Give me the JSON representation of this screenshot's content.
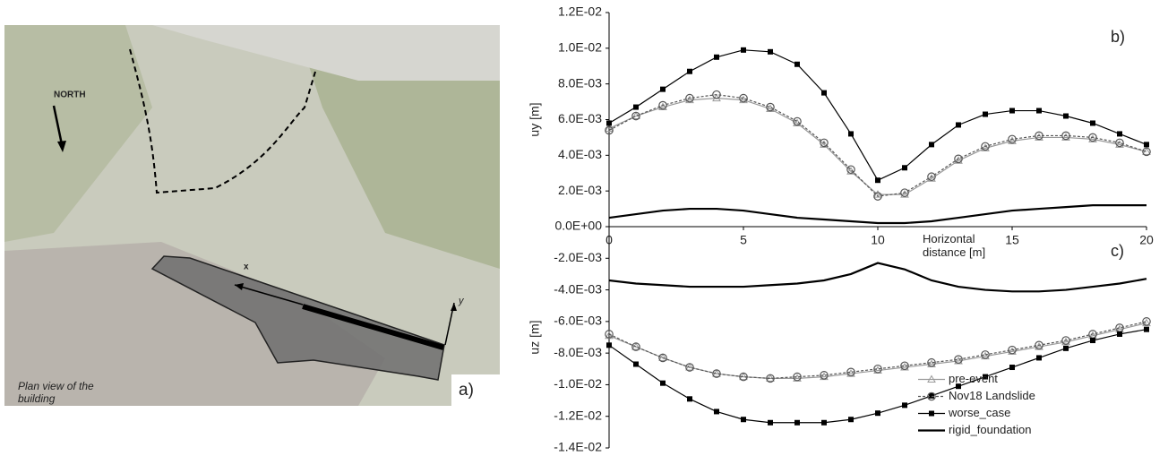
{
  "photo": {
    "north": "NORTH",
    "x_axis": "x",
    "y_axis": "y",
    "caption": "Plan view of the building",
    "panel": "a)"
  },
  "chart_data": [
    {
      "type": "line",
      "panel": "b)",
      "ylabel": "uy [m]",
      "xlabel": "Horizontal distance [m]",
      "x": [
        0,
        1,
        2,
        3,
        4,
        5,
        6,
        7,
        8,
        9,
        10,
        11,
        12,
        13,
        14,
        15,
        16,
        17,
        18,
        19,
        20
      ],
      "xlim": [
        0,
        20
      ],
      "xticks": [
        0,
        5,
        10,
        15,
        20
      ],
      "ylim": [
        0,
        0.012
      ],
      "yticks": [
        {
          "value": 0,
          "label": "0.0E+00"
        },
        {
          "value": 0.002,
          "label": "2.0E-03"
        },
        {
          "value": 0.004,
          "label": "4.0E-03"
        },
        {
          "value": 0.006,
          "label": "6.0E-03"
        },
        {
          "value": 0.008,
          "label": "8.0E-03"
        },
        {
          "value": 0.01,
          "label": "1.0E-02"
        },
        {
          "value": 0.012,
          "label": "1.2E-02"
        }
      ],
      "series": [
        {
          "color": "#9a9a9a",
          "marker": "triangle",
          "values": [
            0.0055,
            0.0062,
            0.0067,
            0.0071,
            0.0072,
            0.0071,
            0.0066,
            0.0058,
            0.0046,
            0.0031,
            0.0018,
            0.0018,
            0.0027,
            0.0037,
            0.0044,
            0.0048,
            0.005,
            0.005,
            0.0049,
            0.0046,
            0.0042
          ]
        },
        {
          "color": "#555555",
          "marker": "circle",
          "dash": true,
          "values": [
            0.0054,
            0.0062,
            0.0068,
            0.0072,
            0.0074,
            0.0072,
            0.0067,
            0.0059,
            0.0047,
            0.0032,
            0.0017,
            0.0019,
            0.0028,
            0.0038,
            0.0045,
            0.0049,
            0.0051,
            0.0051,
            0.005,
            0.0047,
            0.0042
          ]
        },
        {
          "color": "#000000",
          "marker": "square",
          "values": [
            0.0058,
            0.0067,
            0.0077,
            0.0087,
            0.0095,
            0.0099,
            0.0098,
            0.0091,
            0.0075,
            0.0052,
            0.0026,
            0.0033,
            0.0046,
            0.0057,
            0.0063,
            0.0065,
            0.0065,
            0.0062,
            0.0058,
            0.0052,
            0.0046
          ]
        },
        {
          "color": "#000000",
          "marker": "none",
          "values": [
            0.0005,
            0.0007,
            0.0009,
            0.001,
            0.001,
            0.0009,
            0.0007,
            0.0005,
            0.0004,
            0.0003,
            0.0002,
            0.0002,
            0.0003,
            0.0005,
            0.0007,
            0.0009,
            0.001,
            0.0011,
            0.0012,
            0.0012,
            0.0012
          ]
        }
      ]
    },
    {
      "type": "line",
      "panel": "c)",
      "ylabel": "uz [m]",
      "legend": "lower right",
      "x": [
        0,
        1,
        2,
        3,
        4,
        5,
        6,
        7,
        8,
        9,
        10,
        11,
        12,
        13,
        14,
        15,
        16,
        17,
        18,
        19,
        20
      ],
      "xlim": [
        0,
        20
      ],
      "ylim": [
        -0.014,
        0
      ],
      "yticks": [
        {
          "value": -0.002,
          "label": "-2.0E-03"
        },
        {
          "value": -0.004,
          "label": "-4.0E-03"
        },
        {
          "value": -0.006,
          "label": "-6.0E-03"
        },
        {
          "value": -0.008,
          "label": "-8.0E-03"
        },
        {
          "value": -0.01,
          "label": "-1.0E-02"
        },
        {
          "value": -0.012,
          "label": "-1.2E-02"
        },
        {
          "value": -0.014,
          "label": "-1.4E-02"
        }
      ],
      "series": [
        {
          "name": "pre-event",
          "color": "#9a9a9a",
          "marker": "triangle",
          "values": [
            -0.0069,
            -0.0076,
            -0.0083,
            -0.0089,
            -0.0093,
            -0.0095,
            -0.0096,
            -0.0096,
            -0.0095,
            -0.0093,
            -0.0091,
            -0.0089,
            -0.0087,
            -0.0085,
            -0.0082,
            -0.0079,
            -0.0076,
            -0.0073,
            -0.0069,
            -0.0065,
            -0.0061
          ]
        },
        {
          "name": "Nov18 Landslide",
          "color": "#555555",
          "marker": "circle",
          "dash": true,
          "values": [
            -0.0068,
            -0.0076,
            -0.0083,
            -0.0089,
            -0.0093,
            -0.0095,
            -0.0096,
            -0.0095,
            -0.0094,
            -0.0092,
            -0.009,
            -0.0088,
            -0.0086,
            -0.0084,
            -0.0081,
            -0.0078,
            -0.0075,
            -0.0072,
            -0.0068,
            -0.0064,
            -0.006
          ]
        },
        {
          "name": "worse_case",
          "color": "#000000",
          "marker": "square",
          "values": [
            -0.0075,
            -0.0087,
            -0.0099,
            -0.0109,
            -0.0117,
            -0.0122,
            -0.0124,
            -0.0124,
            -0.0124,
            -0.0122,
            -0.0118,
            -0.0113,
            -0.0107,
            -0.0101,
            -0.0095,
            -0.0089,
            -0.0083,
            -0.0077,
            -0.0072,
            -0.0068,
            -0.0065
          ]
        },
        {
          "name": "rigid_foundation",
          "color": "#000000",
          "marker": "none",
          "values": [
            -0.0034,
            -0.0036,
            -0.0037,
            -0.0038,
            -0.0038,
            -0.0038,
            -0.0037,
            -0.0036,
            -0.0034,
            -0.003,
            -0.0023,
            -0.0027,
            -0.0034,
            -0.0038,
            -0.004,
            -0.0041,
            -0.0041,
            -0.004,
            -0.0038,
            -0.0036,
            -0.0033
          ]
        }
      ]
    }
  ]
}
